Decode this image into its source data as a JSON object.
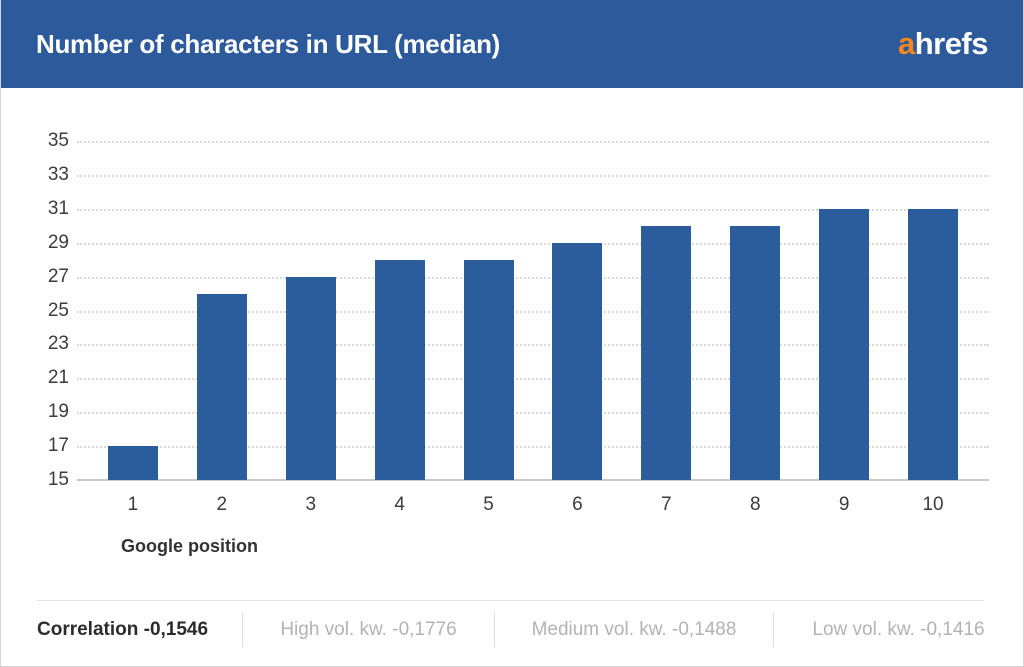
{
  "header": {
    "title": "Number of characters in URL (median)",
    "logo_prefix": "a",
    "logo_rest": "hrefs"
  },
  "chart_data": {
    "type": "bar",
    "categories": [
      "1",
      "2",
      "3",
      "4",
      "5",
      "6",
      "7",
      "8",
      "9",
      "10"
    ],
    "values": [
      17,
      26,
      27,
      28,
      28,
      29,
      30,
      30,
      31,
      31
    ],
    "title": "Number of characters in URL (median)",
    "xlabel": "Google position",
    "ylabel": "",
    "ylim": [
      15,
      35
    ],
    "ytick_step": 2,
    "grid": "horizontal-dotted",
    "legend": null
  },
  "footer": {
    "items": [
      {
        "label": "Correlation -0,1546",
        "emphasis": true
      },
      {
        "label": "High vol. kw. -0,1776",
        "emphasis": false
      },
      {
        "label": "Medium vol. kw. -0,1488",
        "emphasis": false
      },
      {
        "label": "Low vol. kw. -0,1416",
        "emphasis": false
      }
    ]
  },
  "colors": {
    "header_bg": "#2d5a9b",
    "bar": "#2b5c9c",
    "logo_orange": "#f5871f",
    "logo_white": "#ffffff"
  }
}
